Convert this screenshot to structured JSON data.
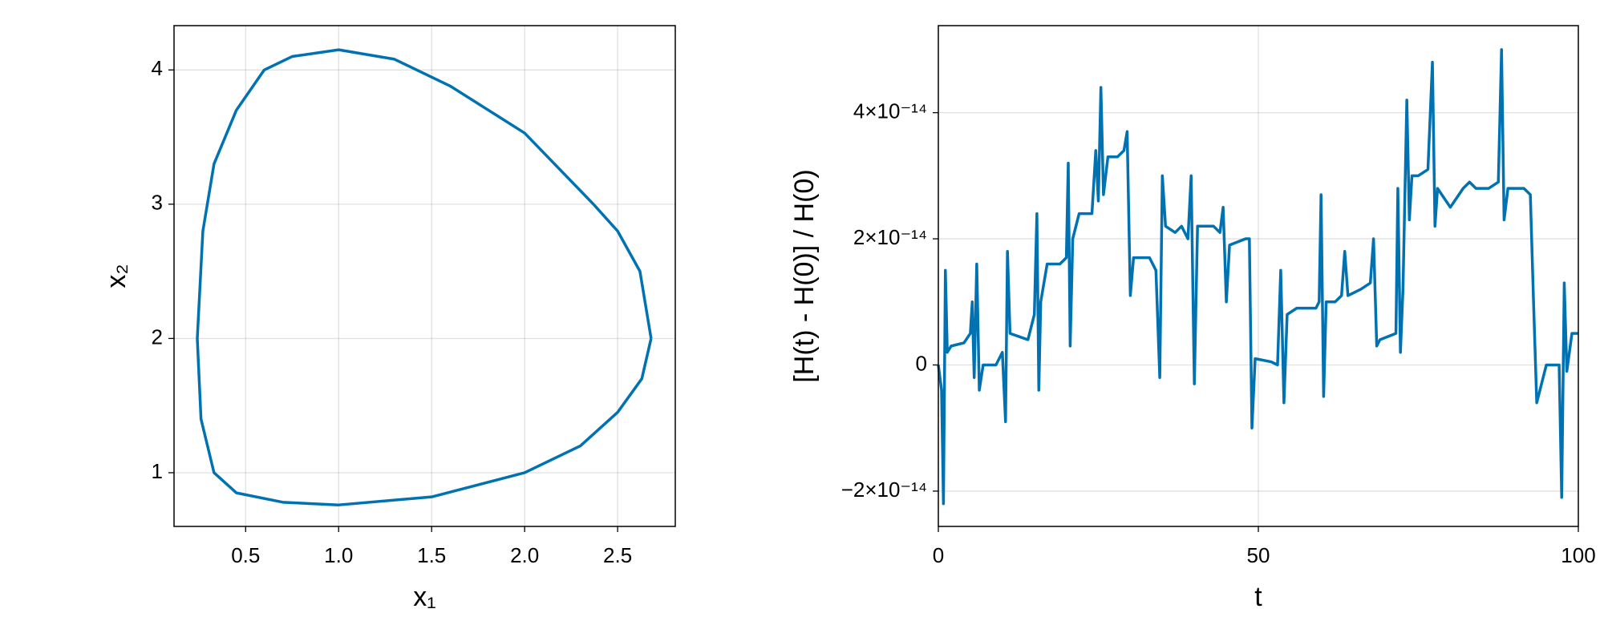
{
  "chart_data": [
    {
      "type": "line",
      "xlabel": "x₁",
      "ylabel": "x₂",
      "xlim": [
        0.115,
        2.81
      ],
      "ylim": [
        0.6,
        4.33
      ],
      "xticks": [
        0.5,
        {
          "value": 1.0,
          "label": "1.0"
        },
        1.5,
        {
          "value": 2.0,
          "label": "2.0"
        },
        2.5
      ],
      "yticks": [
        1,
        2,
        3,
        4
      ],
      "grid": true,
      "series": [
        {
          "color": "#0072b2",
          "x": [
            2.68,
            2.62,
            2.5,
            2.37,
            2.0,
            1.6,
            1.3,
            1.0,
            0.75,
            0.6,
            0.45,
            0.33,
            0.27,
            0.24,
            0.26,
            0.33,
            0.45,
            0.7,
            1.0,
            1.5,
            2.0,
            2.3,
            2.5,
            2.63,
            2.68
          ],
          "values": [
            2.0,
            2.5,
            2.8,
            3.0,
            3.53,
            3.88,
            4.08,
            4.15,
            4.1,
            4.0,
            3.7,
            3.3,
            2.8,
            2.0,
            1.4,
            1.0,
            0.85,
            0.78,
            0.76,
            0.82,
            1.0,
            1.2,
            1.45,
            1.7,
            2.0
          ]
        }
      ]
    },
    {
      "type": "line",
      "xlabel": "t",
      "ylabel": "[H(t) - H(0)] / H(0)",
      "xlim": [
        0,
        100
      ],
      "ylim": [
        -2.56e-14,
        5.38e-14
      ],
      "xticks": [
        0,
        50,
        100
      ],
      "yticks": [
        {
          "value": -2e-14,
          "label": "−2×10⁻¹⁴"
        },
        0,
        {
          "value": 2e-14,
          "label": "2×10⁻¹⁴"
        },
        {
          "value": 4e-14,
          "label": "4×10⁻¹⁴"
        }
      ],
      "grid": true,
      "series": [
        {
          "color": "#0072b2",
          "x": [
            0,
            0.5,
            0.8,
            1.1,
            1.4,
            2,
            4,
            5,
            5.3,
            5.6,
            6,
            6.4,
            7,
            9,
            10,
            10.5,
            10.8,
            11.2,
            14,
            15,
            15.4,
            15.7,
            16,
            17,
            19,
            20,
            20.3,
            20.6,
            21,
            22,
            24,
            24.6,
            25,
            25.4,
            25.8,
            26.5,
            28,
            29,
            29.5,
            30,
            30.5,
            33,
            34,
            34.6,
            35,
            35.5,
            37,
            38,
            39,
            39.5,
            40,
            40.5,
            43,
            44,
            44.5,
            45,
            45.5,
            48,
            48.6,
            49,
            49.5,
            52,
            53,
            53.5,
            54,
            54.5,
            56,
            59,
            59.5,
            59.8,
            60.2,
            60.6,
            62,
            63,
            63.5,
            64,
            66,
            67.5,
            68,
            68.5,
            69,
            71.5,
            71.8,
            72.2,
            72.6,
            73.2,
            73.6,
            74,
            75,
            76.5,
            77.2,
            77.6,
            78,
            80,
            82,
            83,
            84,
            86,
            87.5,
            88,
            88.4,
            89,
            91.5,
            92.5,
            93,
            93.5,
            95,
            97,
            97.4,
            97.8,
            98.2,
            99,
            100
          ],
          "values": [
            0,
            -4e-15,
            -2.2e-14,
            1.5e-14,
            2e-15,
            3e-15,
            3.5e-15,
            5e-15,
            1e-14,
            -2e-15,
            1.6e-14,
            -4e-15,
            0,
            0,
            2e-15,
            -9e-15,
            1.8e-14,
            5e-15,
            4e-15,
            8e-15,
            2.4e-14,
            -4e-15,
            1e-14,
            1.6e-14,
            1.6e-14,
            1.7e-14,
            3.2e-14,
            3e-15,
            2e-14,
            2.4e-14,
            2.4e-14,
            3.4e-14,
            2.6e-14,
            4.4e-14,
            2.7e-14,
            3.3e-14,
            3.3e-14,
            3.4e-14,
            3.7e-14,
            1.1e-14,
            1.7e-14,
            1.7e-14,
            1.5e-14,
            -2e-15,
            3e-14,
            2.2e-14,
            2.1e-14,
            2.2e-14,
            2e-14,
            3e-14,
            -3e-15,
            2.2e-14,
            2.2e-14,
            2.1e-14,
            2.5e-14,
            1e-14,
            1.9e-14,
            2e-14,
            2e-14,
            -1e-14,
            1e-15,
            5e-16,
            0,
            1.5e-14,
            -6e-15,
            8e-15,
            9e-15,
            9e-15,
            1e-14,
            2.7e-14,
            -5e-15,
            1e-14,
            1e-14,
            1.1e-14,
            1.8e-14,
            1.1e-14,
            1.2e-14,
            1.3e-14,
            2e-14,
            3e-15,
            4e-15,
            5e-15,
            2.8e-14,
            2e-15,
            1.2e-14,
            4.2e-14,
            2.3e-14,
            3e-14,
            3e-14,
            3.1e-14,
            4.8e-14,
            2.2e-14,
            2.8e-14,
            2.5e-14,
            2.8e-14,
            2.9e-14,
            2.8e-14,
            2.8e-14,
            2.9e-14,
            5e-14,
            2.3e-14,
            2.8e-14,
            2.8e-14,
            2.7e-14,
            1e-14,
            -6e-15,
            0,
            0,
            -2.1e-14,
            1.3e-14,
            -1e-15,
            5e-15,
            5e-15
          ]
        }
      ]
    }
  ]
}
